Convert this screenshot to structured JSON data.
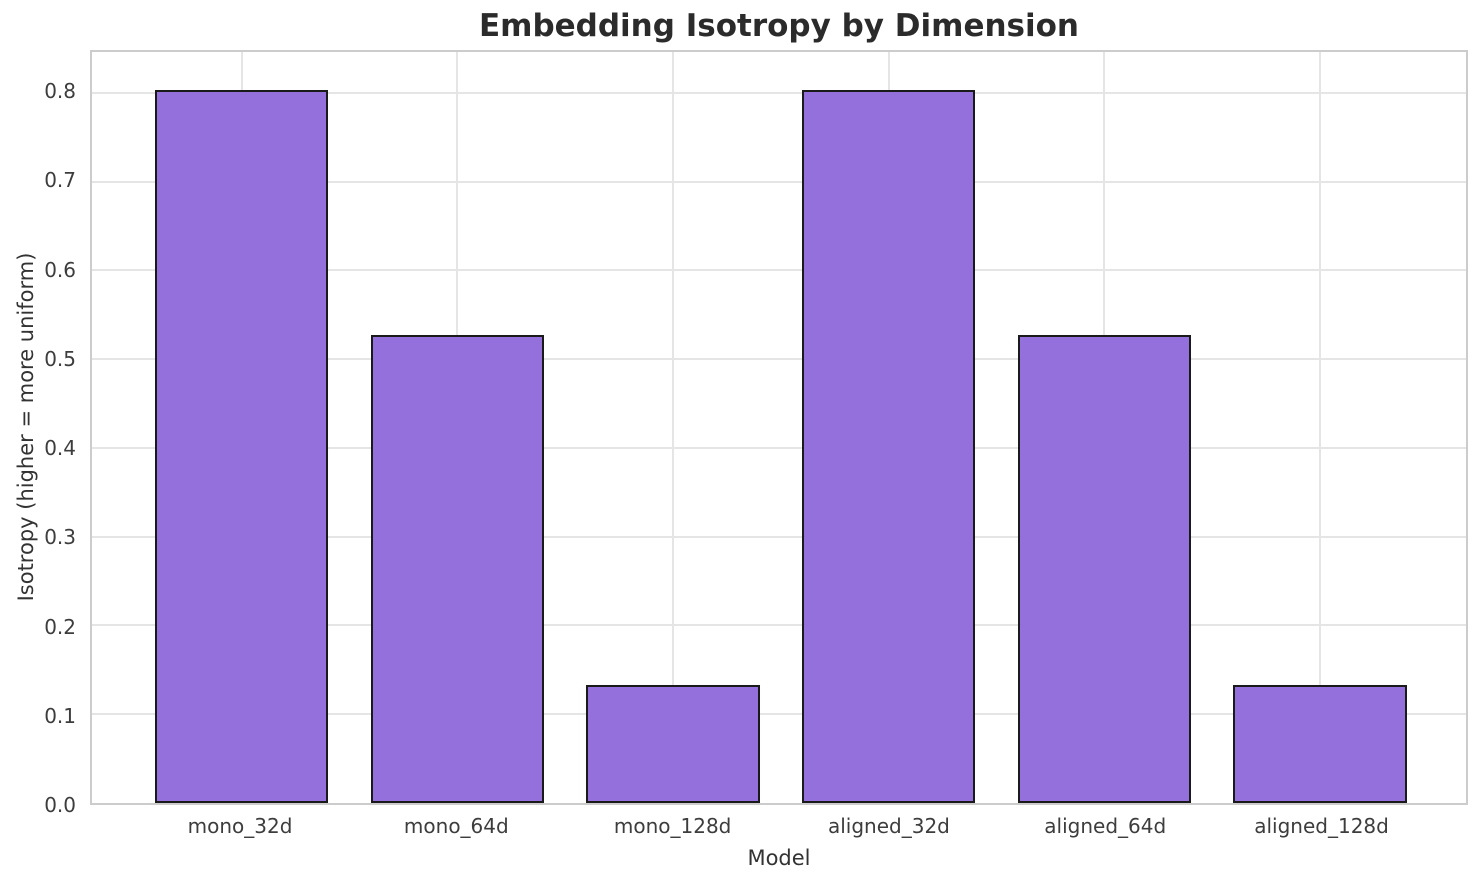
{
  "chart_data": {
    "type": "bar",
    "title": "Embedding Isotropy by Dimension",
    "xlabel": "Model",
    "ylabel": "Isotropy (higher = more uniform)",
    "categories": [
      "mono_32d",
      "mono_64d",
      "mono_128d",
      "aligned_32d",
      "aligned_64d",
      "aligned_128d"
    ],
    "values": [
      0.803,
      0.527,
      0.133,
      0.803,
      0.527,
      0.133
    ],
    "ylim": [
      0.0,
      0.846
    ],
    "yticks": [
      0.0,
      0.1,
      0.2,
      0.3,
      0.4,
      0.5,
      0.6,
      0.7,
      0.8
    ],
    "ytick_labels": [
      "0.0",
      "0.1",
      "0.2",
      "0.3",
      "0.4",
      "0.5",
      "0.6",
      "0.7",
      "0.8"
    ],
    "grid": true,
    "legend_position": "none",
    "bar_color": "#9370DB",
    "bar_edge_color": "#1a1a1a"
  },
  "colors": {
    "background": "#ffffff",
    "grid": "#e5e5e5",
    "spine": "#cccccc",
    "title_text": "#2b2b2b",
    "tick_text": "#3d3d3d",
    "label_text": "#333333"
  }
}
